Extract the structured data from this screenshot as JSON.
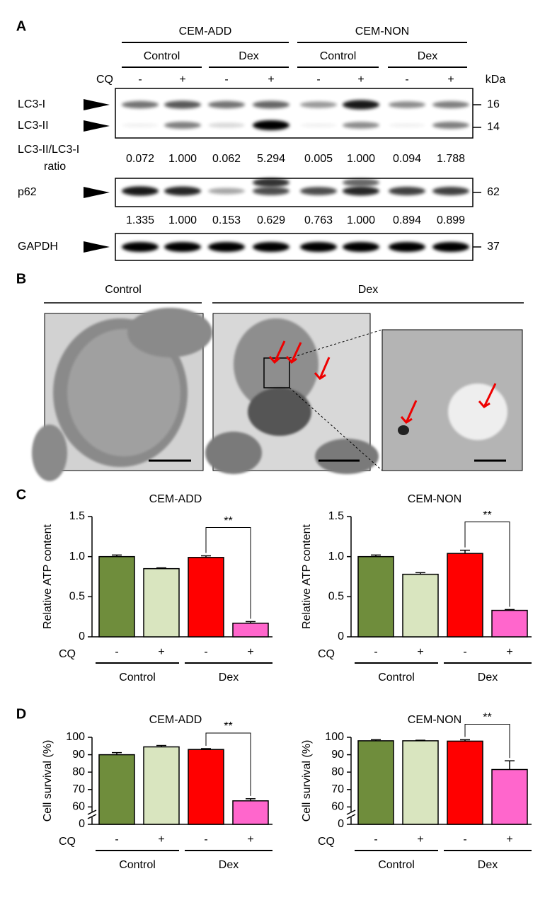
{
  "panels": {
    "A": "A",
    "B": "B",
    "C": "C",
    "D": "D"
  },
  "panel_a": {
    "groups": [
      "CEM-ADD",
      "CEM-NON"
    ],
    "subgroups": [
      "Control",
      "Dex",
      "Control",
      "Dex"
    ],
    "cq_label": "CQ",
    "cq": [
      "-",
      "+",
      "-",
      "+",
      "-",
      "+",
      "-",
      "+"
    ],
    "kda_label": "kDa",
    "blots": [
      {
        "labels": [
          "LC3-I",
          "LC3-II"
        ],
        "markers": [
          "16",
          "14"
        ]
      },
      {
        "labels": [
          "p62"
        ],
        "markers": [
          "62"
        ]
      },
      {
        "labels": [
          "GAPDH"
        ],
        "markers": [
          "37"
        ]
      }
    ],
    "ratio_label": [
      "LC3-II/LC3-I",
      "ratio"
    ],
    "ratios": [
      "0.072",
      "1.000",
      "0.062",
      "5.294",
      "0.005",
      "1.000",
      "0.094",
      "1.788"
    ],
    "p62_values": [
      "1.335",
      "1.000",
      "0.153",
      "0.629",
      "0.763",
      "1.000",
      "0.894",
      "0.899"
    ]
  },
  "panel_b": {
    "groups": [
      "Control",
      "Dex"
    ]
  },
  "chart_data": [
    {
      "type": "bar",
      "title": "CEM-ADD",
      "y_label": "Relative ATP content",
      "categories": [
        "-",
        "+",
        "-",
        "+"
      ],
      "cq_label": "CQ",
      "groups": [
        "Control",
        "Dex"
      ],
      "values": [
        1.0,
        0.85,
        0.99,
        0.17
      ],
      "errors": [
        0.02,
        0.01,
        0.02,
        0.02
      ],
      "colors": [
        "#6f8d3c",
        "#d9e5bf",
        "#ff0000",
        "#ff66cc"
      ],
      "ylim": [
        0,
        1.5
      ],
      "yticks": [
        0,
        0.5,
        {
          "value": 1.0,
          "label": "1.0"
        },
        1.5
      ],
      "annotation": "**"
    },
    {
      "type": "bar",
      "title": "CEM-NON",
      "y_label": "Relative ATP content",
      "categories": [
        "-",
        "+",
        "-",
        "+"
      ],
      "cq_label": "CQ",
      "groups": [
        "Control",
        "Dex"
      ],
      "values": [
        1.0,
        0.78,
        1.04,
        0.33
      ],
      "errors": [
        0.02,
        0.02,
        0.04,
        0.01
      ],
      "colors": [
        "#6f8d3c",
        "#d9e5bf",
        "#ff0000",
        "#ff66cc"
      ],
      "ylim": [
        0,
        1.5
      ],
      "yticks": [
        0,
        0.5,
        {
          "value": 1.0,
          "label": "1.0"
        },
        1.5
      ],
      "annotation": "**"
    },
    {
      "type": "bar",
      "title": "CEM-ADD",
      "y_label": "Cell survival (%)",
      "categories": [
        "-",
        "+",
        "-",
        "+"
      ],
      "cq_label": "CQ",
      "groups": [
        "Control",
        "Dex"
      ],
      "values": [
        90,
        94.5,
        93,
        63.5
      ],
      "errors": [
        1.2,
        0.8,
        0.5,
        1.2
      ],
      "colors": [
        "#6f8d3c",
        "#d9e5bf",
        "#ff0000",
        "#ff66cc"
      ],
      "ylim": [
        50,
        100
      ],
      "yticks": [
        0,
        60,
        70,
        80,
        90,
        100
      ],
      "axis_break": true,
      "annotation": "**"
    },
    {
      "type": "bar",
      "title": "CEM-NON",
      "y_label": "Cell survival (%)",
      "categories": [
        "-",
        "+",
        "-",
        "+"
      ],
      "cq_label": "CQ",
      "groups": [
        "Control",
        "Dex"
      ],
      "values": [
        98,
        98,
        97.8,
        81.5
      ],
      "errors": [
        0.6,
        0.3,
        0.8,
        5
      ],
      "colors": [
        "#6f8d3c",
        "#d9e5bf",
        "#ff0000",
        "#ff66cc"
      ],
      "ylim": [
        50,
        100
      ],
      "yticks": [
        0,
        60,
        70,
        80,
        90,
        100
      ],
      "axis_break": true,
      "annotation": "**"
    }
  ]
}
